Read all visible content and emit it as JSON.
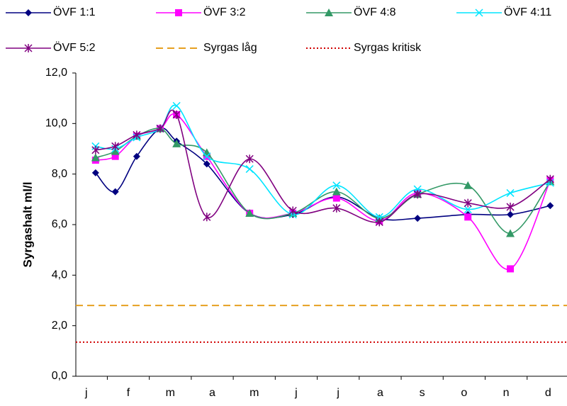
{
  "chart_data": {
    "type": "line",
    "y_label": "Syrgashalt ml/l",
    "categories": [
      "j",
      "f",
      "m",
      "a",
      "m",
      "j",
      "j",
      "a",
      "s",
      "o",
      "n",
      "d"
    ],
    "x": [
      0.22,
      0.69,
      1.2,
      1.76,
      2.15,
      2.87,
      3.89,
      4.92,
      5.96,
      6.98,
      7.89,
      9.09,
      10.1,
      11.05
    ],
    "xlim": [
      -0.25,
      11.45
    ],
    "ylim": [
      0,
      12
    ],
    "yticks": [
      {
        "value": 0,
        "label": "0,0"
      },
      {
        "value": 2,
        "label": "2,0"
      },
      {
        "value": 4,
        "label": "4,0"
      },
      {
        "value": 6,
        "label": "6,0"
      },
      {
        "value": 8,
        "label": "8,0"
      },
      {
        "value": 10,
        "label": "10,0"
      },
      {
        "value": 12,
        "label": "12,0"
      }
    ],
    "series": [
      {
        "name": "ÖVF 1:1",
        "color": "#000080",
        "marker": "diamond",
        "values": [
          8.05,
          7.3,
          8.7,
          9.8,
          9.3,
          8.4,
          6.45,
          6.4,
          7.1,
          6.25,
          6.25,
          6.4,
          6.4,
          6.75
        ]
      },
      {
        "name": "ÖVF 3:2",
        "color": "#ff00ff",
        "marker": "square",
        "values": [
          8.55,
          8.7,
          9.5,
          9.8,
          10.35,
          8.7,
          6.45,
          6.45,
          7.05,
          6.15,
          7.25,
          6.3,
          4.25,
          7.75
        ]
      },
      {
        "name": "ÖVF 4:8",
        "color": "#339966",
        "marker": "triangle",
        "values": [
          8.65,
          8.9,
          9.5,
          9.8,
          9.2,
          8.85,
          6.45,
          6.45,
          7.3,
          6.25,
          7.2,
          7.55,
          5.65,
          7.7
        ]
      },
      {
        "name": "ÖVF 4:11",
        "color": "#00e5ff",
        "marker": "x",
        "values": [
          9.1,
          9.0,
          9.45,
          9.8,
          10.7,
          8.7,
          8.2,
          6.4,
          7.55,
          6.3,
          7.4,
          6.6,
          7.25,
          7.65
        ]
      },
      {
        "name": "ÖVF 5:2",
        "color": "#800080",
        "marker": "star",
        "values": [
          8.95,
          9.1,
          9.55,
          9.8,
          10.35,
          6.3,
          8.6,
          6.55,
          6.65,
          6.1,
          7.2,
          6.85,
          6.7,
          7.8
        ]
      }
    ],
    "reference_lines": [
      {
        "name": "Syrgas låg",
        "color": "#e6a020",
        "style": "dashed",
        "value": 2.8
      },
      {
        "name": "Syrgas kritisk",
        "color": "#d00000",
        "style": "dotted",
        "value": 1.35
      }
    ]
  }
}
